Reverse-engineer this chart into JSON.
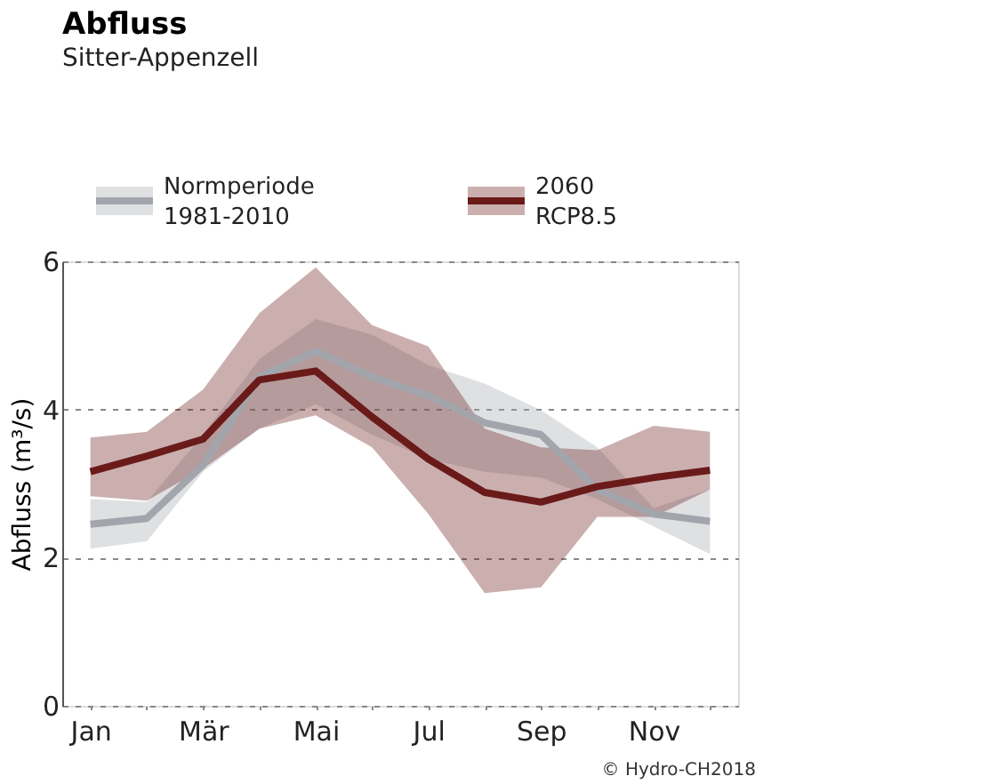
{
  "chart_data": [
    {
      "type": "line",
      "title": "Abfluss",
      "subtitle": "Sitter-Appenzell",
      "ylabel": "Abfluss (m³/s)",
      "categories": [
        "Jan",
        null,
        "Mär",
        null,
        "Mai",
        null,
        "Jul",
        null,
        "Sep",
        null,
        "Nov",
        null
      ],
      "ylim": [
        0,
        6
      ],
      "yticks": [
        0,
        2,
        4,
        6
      ],
      "grid": "y",
      "legend": "top",
      "annotations": [
        "© Hydro-CH2018"
      ],
      "series": [
        {
          "name": "Normperiode 1981-2010",
          "color": "#a3a5ad",
          "values": [
            2.45,
            2.53,
            3.25,
            4.44,
            4.79,
            4.44,
            4.19,
            3.82,
            3.66,
            2.92,
            2.59,
            2.49
          ],
          "lower": [
            2.12,
            2.22,
            3.16,
            3.74,
            4.07,
            3.66,
            3.33,
            3.16,
            3.08,
            2.79,
            2.42,
            2.05
          ],
          "upper": [
            2.79,
            2.75,
            3.66,
            4.68,
            5.22,
            5.01,
            4.6,
            4.35,
            3.99,
            3.49,
            2.67,
            2.92
          ]
        },
        {
          "name": "2060 RCP8.5",
          "color": "#6b1a1a",
          "values": [
            3.16,
            3.37,
            3.6,
            4.4,
            4.52,
            3.9,
            3.33,
            2.88,
            2.75,
            2.96,
            3.08,
            3.18
          ],
          "lower": [
            2.83,
            2.77,
            3.2,
            3.74,
            3.92,
            3.49,
            2.59,
            1.52,
            1.6,
            2.55,
            2.55,
            2.92
          ],
          "upper": [
            3.62,
            3.7,
            4.27,
            5.3,
            5.92,
            5.14,
            4.85,
            3.74,
            3.49,
            3.45,
            3.78,
            3.7
          ]
        }
      ]
    }
  ]
}
